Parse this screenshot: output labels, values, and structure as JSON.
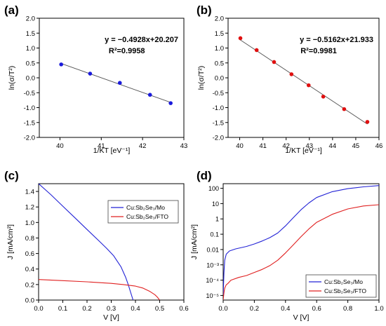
{
  "chart_data": [
    {
      "id": "a",
      "panel_label": "(a)",
      "type": "scatter",
      "xlabel": "1/KT [eV⁻¹]",
      "ylabel": "ln(σ/T²)",
      "xlim": [
        39.5,
        43
      ],
      "ylim": [
        -2.0,
        2.0
      ],
      "xticks": [
        40,
        41,
        42,
        43
      ],
      "yticks": [
        -2.0,
        -1.5,
        -1.0,
        -0.5,
        0.0,
        0.5,
        1.0,
        1.5,
        2.0
      ],
      "annotation_equation": "y = −0.4928x+20.207",
      "annotation_r2": "R²=0.9958",
      "fit": {
        "slope": -0.4928,
        "intercept": 20.207,
        "x_range": [
          40.0,
          42.68
        ]
      },
      "point_color": "#1a1adb",
      "series": [
        {
          "x": [
            40.03,
            40.73,
            41.45,
            42.18,
            42.68
          ],
          "y": [
            0.45,
            0.14,
            -0.17,
            -0.57,
            -0.85
          ]
        }
      ]
    },
    {
      "id": "b",
      "panel_label": "(b)",
      "type": "scatter",
      "xlabel": "1/KT [eV⁻¹]",
      "ylabel": "ln(σ/T²)",
      "xlim": [
        39.5,
        46
      ],
      "ylim": [
        -2.0,
        2.0
      ],
      "xticks": [
        40,
        41,
        42,
        43,
        44,
        45,
        46
      ],
      "yticks": [
        -2.0,
        -1.5,
        -1.0,
        -0.5,
        0.0,
        0.5,
        1.0,
        1.5,
        2.0
      ],
      "annotation_equation": "y = −0.5162x+21.933",
      "annotation_r2": "R²=0.9981",
      "fit": {
        "slope": -0.5162,
        "intercept": 21.933,
        "x_range": [
          40.0,
          45.5
        ]
      },
      "point_color": "#e01010",
      "series": [
        {
          "x": [
            40.03,
            40.73,
            41.48,
            42.23,
            42.97,
            43.6,
            44.5,
            45.5
          ],
          "y": [
            1.33,
            0.93,
            0.53,
            0.12,
            -0.25,
            -0.63,
            -1.05,
            -1.48
          ]
        }
      ]
    },
    {
      "id": "c",
      "panel_label": "(c)",
      "type": "line",
      "xlabel": "V [V]",
      "ylabel": "J [mA/cm²]",
      "xlim": [
        0.0,
        0.6
      ],
      "ylim": [
        0.0,
        1.5
      ],
      "xticks": [
        0.0,
        0.1,
        0.2,
        0.3,
        0.4,
        0.5,
        0.6
      ],
      "yticks": [
        0.0,
        0.2,
        0.4,
        0.6,
        0.8,
        1.0,
        1.2,
        1.4
      ],
      "legend_position": "top-right",
      "series": [
        {
          "name": "Cu:Sb₂Se₃/Mo",
          "color": "#2323d6",
          "x": [
            0.0,
            0.05,
            0.1,
            0.15,
            0.2,
            0.25,
            0.28,
            0.31,
            0.34,
            0.36,
            0.37,
            0.38,
            0.39
          ],
          "y": [
            1.5,
            1.36,
            1.21,
            1.06,
            0.91,
            0.76,
            0.67,
            0.57,
            0.43,
            0.29,
            0.2,
            0.1,
            0.0
          ]
        },
        {
          "name": "Cu:Sb₂Se₃/FTO",
          "color": "#e02020",
          "x": [
            0.0,
            0.1,
            0.2,
            0.3,
            0.35,
            0.4,
            0.43,
            0.46,
            0.48,
            0.49,
            0.5
          ],
          "y": [
            0.265,
            0.25,
            0.235,
            0.215,
            0.2,
            0.18,
            0.155,
            0.11,
            0.07,
            0.04,
            0.0
          ]
        }
      ]
    },
    {
      "id": "d",
      "panel_label": "(d)",
      "type": "line",
      "xlabel": "V [V]",
      "ylabel": "J [mA/cm²]",
      "yscale": "log",
      "xlim": [
        0.0,
        1.0
      ],
      "ylim": [
        5e-06,
        200
      ],
      "xticks": [
        0.0,
        0.2,
        0.4,
        0.6,
        0.8,
        1.0
      ],
      "yticks": [
        1e-05,
        0.0001,
        0.001,
        0.01,
        0.1,
        1,
        10,
        100
      ],
      "ytick_labels": [
        "10⁻⁵",
        "10⁻⁴",
        "10⁻³",
        "0.01",
        "0.1",
        "1",
        "10",
        "100"
      ],
      "legend_position": "bottom-right",
      "series": [
        {
          "name": "Cu:Sb₂Se₃/Mo",
          "color": "#2323d6",
          "x": [
            0.0,
            0.005,
            0.01,
            0.02,
            0.04,
            0.08,
            0.15,
            0.2,
            0.25,
            0.3,
            0.35,
            0.4,
            0.45,
            0.5,
            0.55,
            0.6,
            0.7,
            0.8,
            0.9,
            1.0
          ],
          "y": [
            1e-05,
            0.0003,
            0.002,
            0.005,
            0.008,
            0.011,
            0.016,
            0.023,
            0.036,
            0.06,
            0.12,
            0.35,
            1.2,
            4.0,
            11,
            25,
            60,
            95,
            125,
            150
          ]
        },
        {
          "name": "Cu:Sb₂Se₃/FTO",
          "color": "#e02020",
          "x": [
            0.0,
            0.005,
            0.01,
            0.02,
            0.03,
            0.05,
            0.1,
            0.15,
            0.2,
            0.25,
            0.3,
            0.35,
            0.4,
            0.45,
            0.5,
            0.55,
            0.6,
            0.7,
            0.8,
            0.9,
            1.0
          ],
          "y": [
            5e-06,
            1.5e-05,
            3e-05,
            5e-05,
            6e-05,
            0.0001,
            0.00015,
            0.0002,
            0.00032,
            0.0005,
            0.0009,
            0.002,
            0.006,
            0.02,
            0.07,
            0.22,
            0.6,
            2.0,
            4.5,
            7.0,
            8.5
          ]
        }
      ]
    }
  ]
}
